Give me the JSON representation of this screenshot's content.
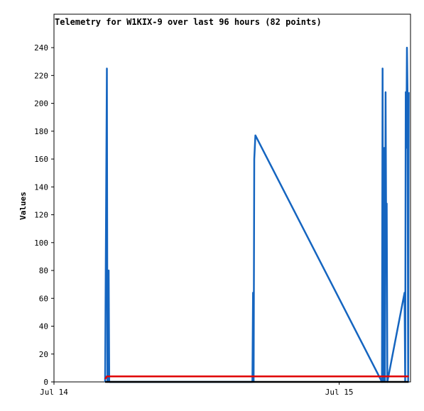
{
  "chart_data": {
    "type": "line",
    "title": "Telemetry for W1KIX-9 over last 96 hours (82 points)",
    "y_label": "Values",
    "xlim": [
      0,
      30
    ],
    "ylim": [
      0,
      264
    ],
    "xticks": [
      {
        "value": 0,
        "label": "Jul 14"
      },
      {
        "value": 24,
        "label": "Jul 15"
      }
    ],
    "yticks": [
      0,
      20,
      40,
      60,
      80,
      100,
      120,
      140,
      160,
      180,
      200,
      220,
      240
    ],
    "grid": false,
    "series": [
      {
        "color": "#1565c0",
        "x": [
          4.3,
          4.45,
          4.5,
          4.6,
          4.65,
          16.7,
          16.75,
          16.8,
          16.85,
          16.95,
          27.6,
          27.65,
          27.7,
          27.75,
          27.8,
          27.85,
          27.9,
          27.95,
          28.0,
          28.05,
          29.5,
          29.55,
          29.6,
          29.65,
          29.7,
          29.75,
          29.8,
          29.85
        ],
        "values": [
          0,
          225,
          0,
          80,
          0,
          0,
          64,
          0,
          160,
          177,
          0,
          225,
          0,
          112,
          168,
          0,
          208,
          112,
          128,
          0,
          64,
          0,
          208,
          168,
          240,
          208,
          0,
          208
        ]
      },
      {
        "color": "#e00000",
        "x": [
          4.3,
          4.45,
          29.85
        ],
        "values": [
          2,
          4,
          4
        ]
      },
      {
        "color": "#000000",
        "x": [
          4.3,
          29.85
        ],
        "values": [
          0,
          0
        ]
      }
    ]
  }
}
